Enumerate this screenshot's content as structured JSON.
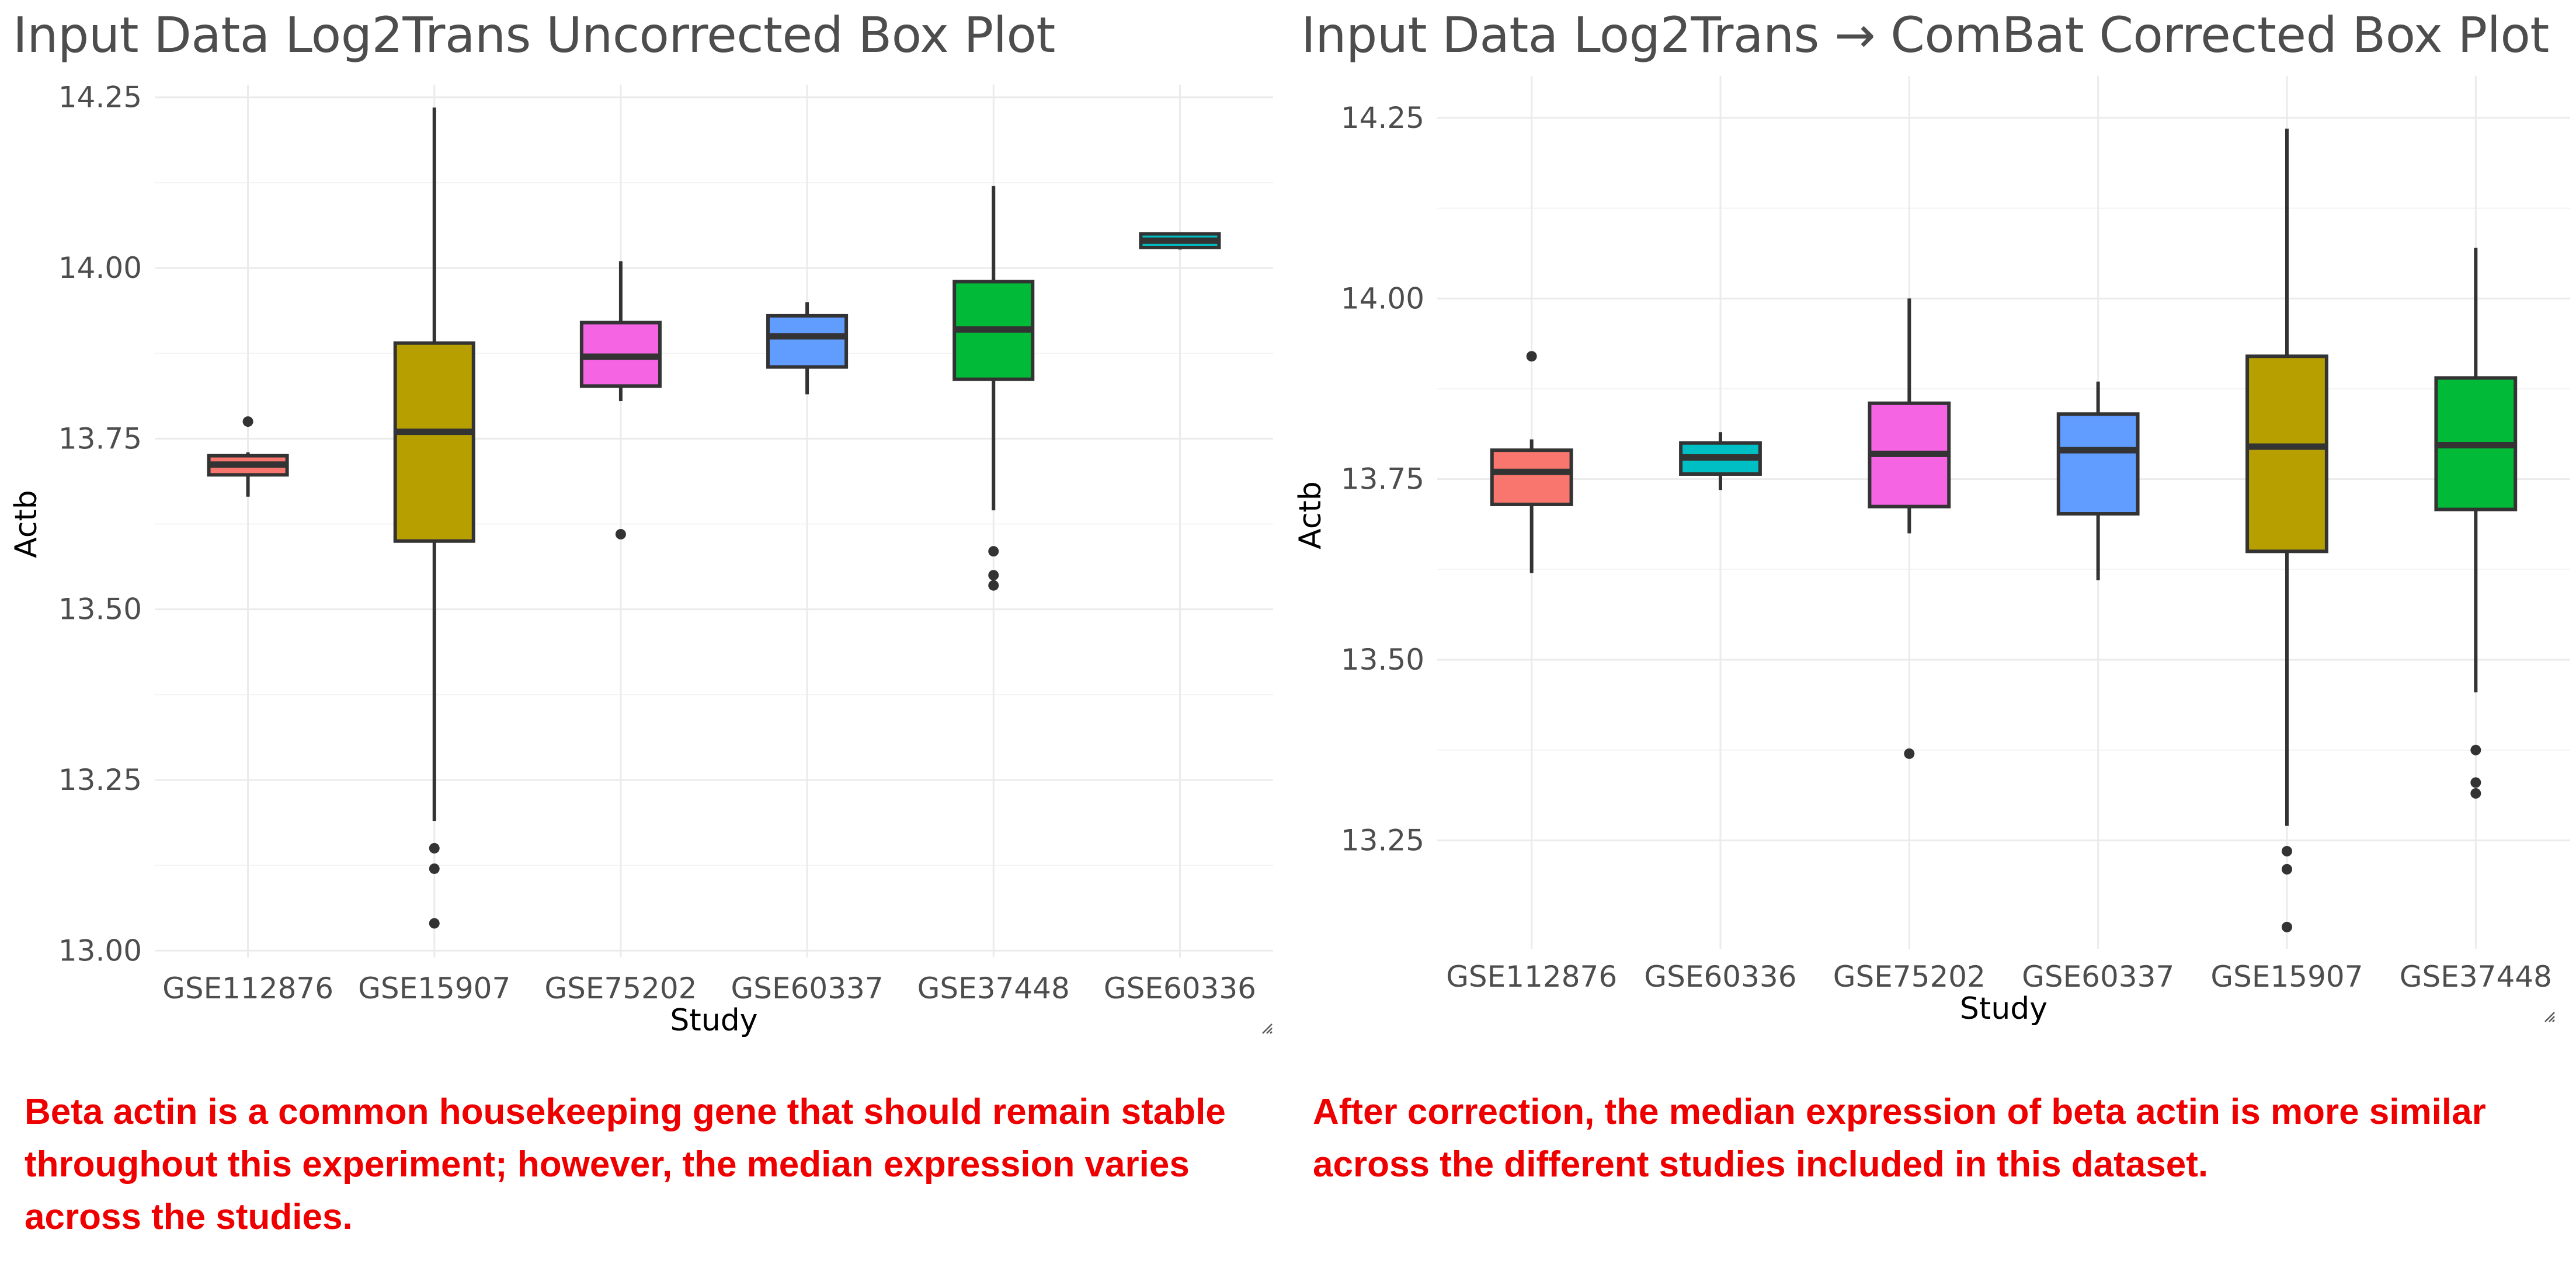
{
  "panels": [
    {
      "title": "Input Data Log2Trans Uncorrected Box Plot",
      "caption": "Beta actin is a common housekeeping gene that should remain stable throughout this experiment; however, the median expression varies across the studies.",
      "resize_icon": "resize-handle-icon"
    },
    {
      "title": "Input Data Log2Trans → ComBat Corrected Box Plot",
      "caption": "After correction, the median expression of beta actin is more similar across the different studies included in this dataset.",
      "resize_icon": "resize-handle-icon"
    }
  ],
  "chart_data": [
    {
      "type": "box",
      "title": "Input Data Log2Trans Uncorrected Box Plot",
      "xlabel": "Study",
      "ylabel": "Actb",
      "ylim": [
        12.99,
        14.26
      ],
      "yticks": [
        13.0,
        13.25,
        13.5,
        13.75,
        14.0,
        14.25
      ],
      "ytick_labels": [
        "13.00",
        "13.25",
        "13.50",
        "13.75",
        "14.00",
        "14.25"
      ],
      "grid": true,
      "legend": "none",
      "categories": [
        "GSE112876",
        "GSE15907",
        "GSE75202",
        "GSE60337",
        "GSE37448",
        "GSE60336"
      ],
      "boxes": [
        {
          "category": "GSE112876",
          "color": "#F8766D",
          "whisker_low": 13.665,
          "q1": 13.697,
          "median": 13.712,
          "q3": 13.725,
          "whisker_high": 13.73,
          "outliers": [
            13.775
          ]
        },
        {
          "category": "GSE15907",
          "color": "#B79F00",
          "whisker_low": 13.19,
          "q1": 13.6,
          "median": 13.76,
          "q3": 13.89,
          "whisker_high": 14.235,
          "outliers": [
            13.15,
            13.12,
            13.04
          ]
        },
        {
          "category": "GSE75202",
          "color": "#F564E3",
          "whisker_low": 13.805,
          "q1": 13.827,
          "median": 13.87,
          "q3": 13.92,
          "whisker_high": 14.01,
          "outliers": [
            13.61
          ]
        },
        {
          "category": "GSE60337",
          "color": "#619CFF",
          "whisker_low": 13.815,
          "q1": 13.855,
          "median": 13.9,
          "q3": 13.93,
          "whisker_high": 13.95,
          "outliers": []
        },
        {
          "category": "GSE37448",
          "color": "#00BA38",
          "whisker_low": 13.645,
          "q1": 13.837,
          "median": 13.91,
          "q3": 13.98,
          "whisker_high": 14.12,
          "outliers": [
            13.585,
            13.55,
            13.535
          ]
        },
        {
          "category": "GSE60336",
          "color": "#00BFC4",
          "whisker_low": 14.027,
          "q1": 14.03,
          "median": 14.04,
          "q3": 14.05,
          "whisker_high": 14.052,
          "outliers": []
        }
      ]
    },
    {
      "type": "box",
      "title": "Input Data Log2Trans → ComBat Corrected Box Plot",
      "xlabel": "Study",
      "ylabel": "Actb",
      "ylim": [
        13.1,
        14.3
      ],
      "yticks": [
        13.25,
        13.5,
        13.75,
        14.0,
        14.25
      ],
      "ytick_labels": [
        "13.25",
        "13.50",
        "13.75",
        "14.00",
        "14.25"
      ],
      "grid": true,
      "legend": "none",
      "categories": [
        "GSE112876",
        "GSE60336",
        "GSE75202",
        "GSE60337",
        "GSE15907",
        "GSE37448"
      ],
      "boxes": [
        {
          "category": "GSE112876",
          "color": "#F8766D",
          "whisker_low": 13.62,
          "q1": 13.715,
          "median": 13.76,
          "q3": 13.79,
          "whisker_high": 13.805,
          "outliers": [
            13.92
          ]
        },
        {
          "category": "GSE60336",
          "color": "#00BFC4",
          "whisker_low": 13.735,
          "q1": 13.757,
          "median": 13.78,
          "q3": 13.8,
          "whisker_high": 13.815,
          "outliers": []
        },
        {
          "category": "GSE75202",
          "color": "#F564E3",
          "whisker_low": 13.675,
          "q1": 13.712,
          "median": 13.785,
          "q3": 13.855,
          "whisker_high": 14.0,
          "outliers": [
            13.37
          ]
        },
        {
          "category": "GSE60337",
          "color": "#619CFF",
          "whisker_low": 13.61,
          "q1": 13.702,
          "median": 13.79,
          "q3": 13.84,
          "whisker_high": 13.885,
          "outliers": []
        },
        {
          "category": "GSE15907",
          "color": "#B79F00",
          "whisker_low": 13.27,
          "q1": 13.65,
          "median": 13.795,
          "q3": 13.92,
          "whisker_high": 14.235,
          "outliers": [
            13.235,
            13.21,
            13.13
          ]
        },
        {
          "category": "GSE37448",
          "color": "#00BA38",
          "whisker_low": 13.455,
          "q1": 13.708,
          "median": 13.797,
          "q3": 13.89,
          "whisker_high": 14.07,
          "outliers": [
            13.375,
            13.33,
            13.315
          ]
        }
      ]
    }
  ]
}
